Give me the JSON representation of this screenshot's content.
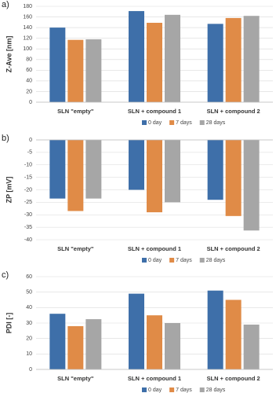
{
  "chart_data": [
    {
      "type": "bar",
      "label": "a)",
      "ylabel": "Z-Ave [nm]",
      "categories": [
        "SLN \"empty\"",
        "SLN + compound 1",
        "SLN + compound 2"
      ],
      "series": [
        {
          "name": "0 day",
          "color": "#3e6fa9",
          "values": [
            140,
            171,
            147
          ]
        },
        {
          "name": "7 days",
          "color": "#e08b47",
          "values": [
            117,
            149,
            158
          ]
        },
        {
          "name": "28 days",
          "color": "#a6a6a6",
          "values": [
            118,
            164,
            162
          ]
        }
      ],
      "ylim": [
        0,
        180
      ],
      "yticks": [
        0,
        20,
        40,
        60,
        80,
        100,
        120,
        140,
        160,
        180
      ],
      "grid": true
    },
    {
      "type": "bar",
      "label": "b)",
      "ylabel": "ZP [mV]",
      "categories": [
        "SLN \"empty\"",
        "SLN + compound 1",
        "SLN + compound 2"
      ],
      "series": [
        {
          "name": "0 day",
          "color": "#3e6fa9",
          "values": [
            -23.5,
            -20,
            -24
          ]
        },
        {
          "name": "7 days",
          "color": "#e08b47",
          "values": [
            -28.5,
            -29,
            -30.5
          ]
        },
        {
          "name": "28 days",
          "color": "#a6a6a6",
          "values": [
            -23.5,
            -25,
            -36.3
          ]
        }
      ],
      "ylim": [
        -40,
        0
      ],
      "yticks": [
        0,
        -5,
        -10,
        -15,
        -20,
        -25,
        -30,
        -35,
        -40
      ],
      "grid": true
    },
    {
      "type": "bar",
      "label": "c)",
      "ylabel": "PDI [-]",
      "categories": [
        "SLN \"empty\"",
        "SLN + compound 1",
        "SLN + compound 2"
      ],
      "series": [
        {
          "name": "0 day",
          "color": "#3e6fa9",
          "values": [
            36,
            49,
            51
          ]
        },
        {
          "name": "7 days",
          "color": "#e08b47",
          "values": [
            28,
            35,
            45
          ]
        },
        {
          "name": "28 days",
          "color": "#a6a6a6",
          "values": [
            32.5,
            30,
            29
          ]
        }
      ],
      "ylim": [
        0,
        60
      ],
      "yticks": [
        0,
        10,
        20,
        30,
        40,
        50,
        60
      ],
      "grid": true
    }
  ]
}
